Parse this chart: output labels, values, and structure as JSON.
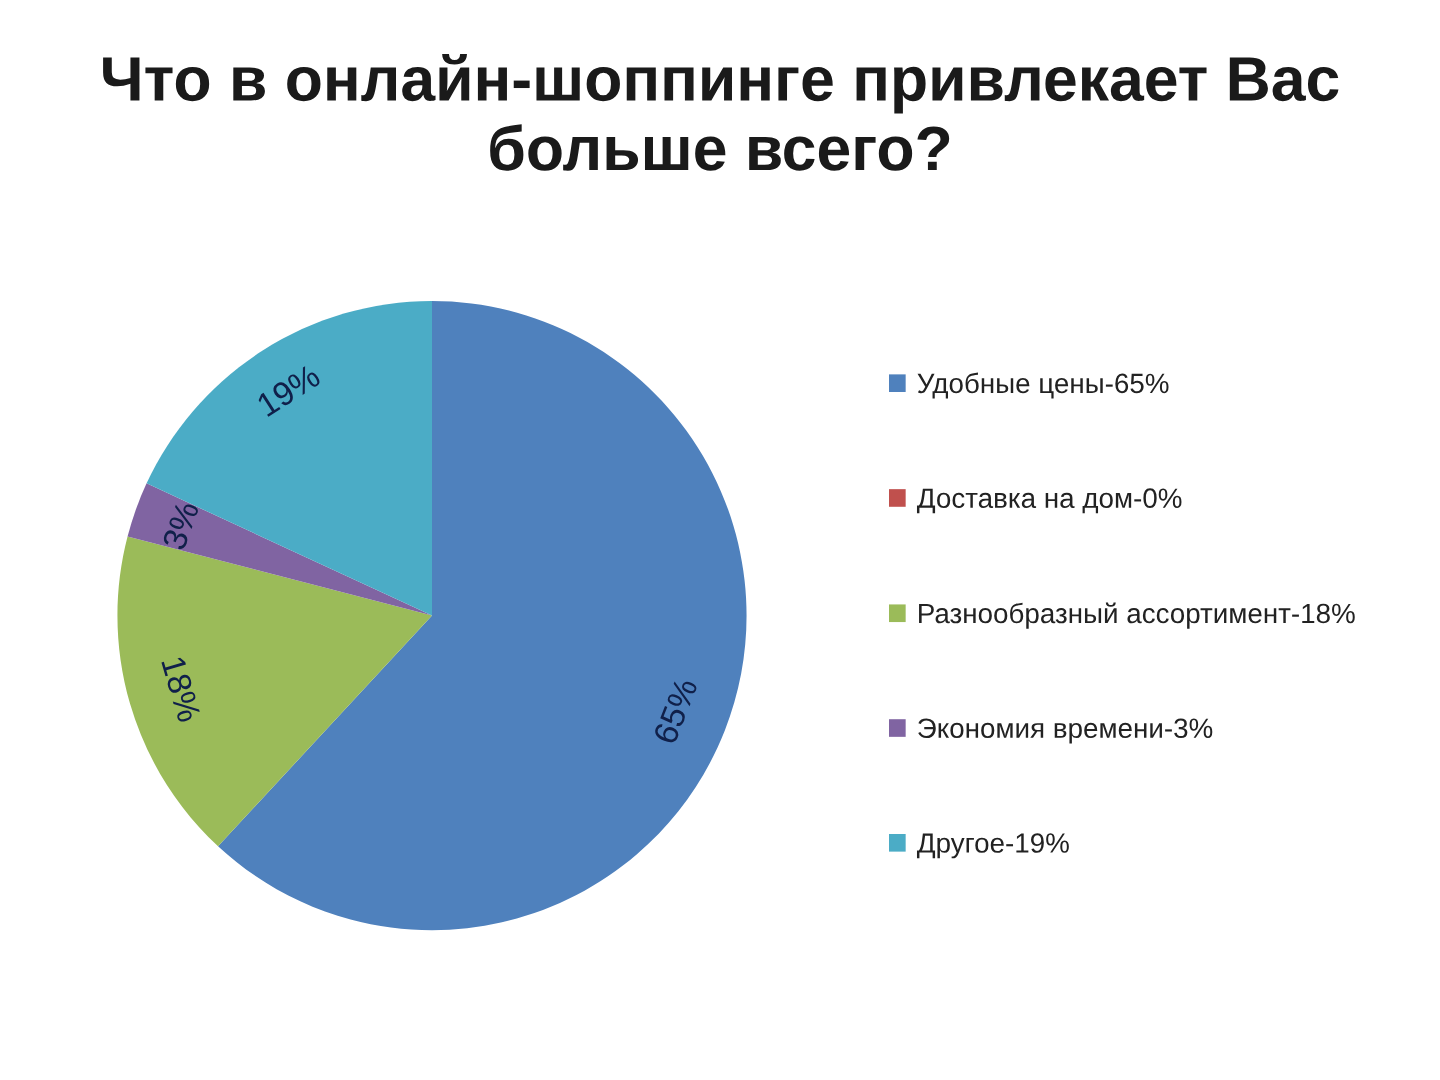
{
  "chart_data": {
    "type": "pie",
    "title": "Что в онлайн-шоппинге привлекает Вас больше всего?",
    "categories": [
      "Удобные цены-65%",
      "Доставка на дом-0%",
      "Разнообразный ассортимент-18%",
      "Экономия времени-3%",
      "Другое-19%"
    ],
    "values": [
      65,
      0,
      18,
      3,
      19
    ],
    "colors": [
      "#4f81bd",
      "#c0504d",
      "#9bbb59",
      "#8064a2",
      "#4bacc6"
    ],
    "value_labels": [
      "65%",
      null,
      "18%",
      "3%",
      "19%"
    ],
    "legend": "right"
  }
}
